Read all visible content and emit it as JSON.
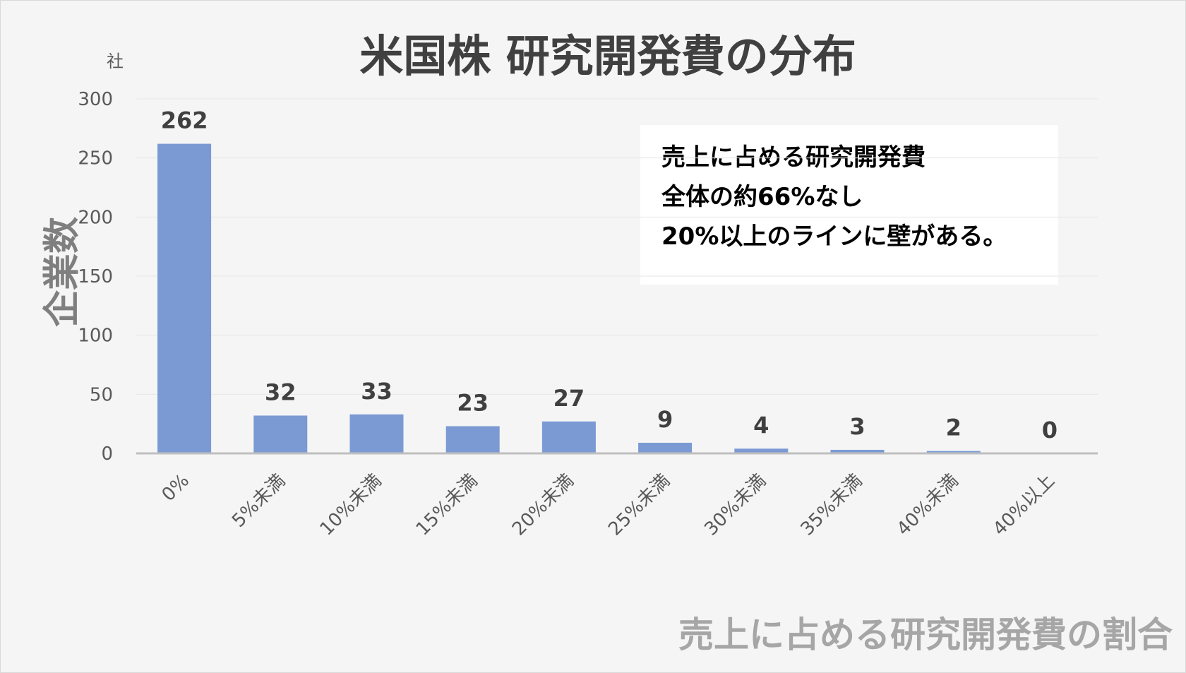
{
  "title": "米国株 研究開発費の分布",
  "unit_label": "社",
  "y_axis_label": "企業数",
  "x_axis_label": "売上に占める研究開発費の割合",
  "note": {
    "lines": [
      "売上に占める研究開発費",
      "全体の約66%なし",
      "20%以上のラインに壁がある。"
    ]
  },
  "colors": {
    "bar": "#7b9ad4",
    "grid": "#e6e6e6",
    "axis": "#bfbfbf",
    "label": "#404040",
    "tick": "#595959"
  },
  "chart_data": {
    "type": "bar",
    "title": "米国株 研究開発費の分布",
    "xlabel": "売上に占める研究開発費の割合",
    "ylabel": "企業数",
    "categories": [
      "0%",
      "5%未満",
      "10%未満",
      "15%未満",
      "20%未満",
      "25%未満",
      "30%未満",
      "35%未満",
      "40%未満",
      "40%以上"
    ],
    "values": [
      262,
      32,
      33,
      23,
      27,
      9,
      4,
      3,
      2,
      0
    ],
    "ylim": [
      0,
      300
    ],
    "yticks": [
      0,
      50,
      100,
      150,
      200,
      250,
      300
    ],
    "grid": true,
    "data_labels": true,
    "legend": false
  }
}
